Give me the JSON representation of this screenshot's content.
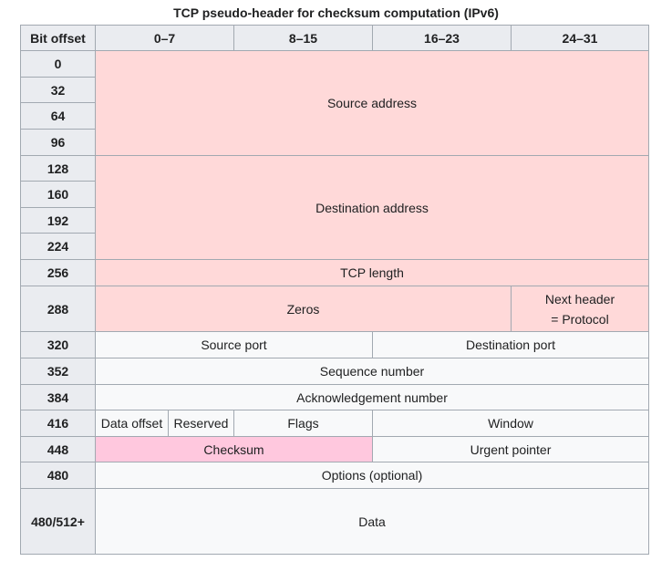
{
  "caption": "TCP pseudo-header for checksum computation (IPv6)",
  "columns": {
    "offset": "Bit offset",
    "c0": "0–7",
    "c1": "8–15",
    "c2": "16–23",
    "c3": "24–31"
  },
  "offsets": [
    "0",
    "32",
    "64",
    "96",
    "128",
    "160",
    "192",
    "224",
    "256",
    "288",
    "320",
    "352",
    "384",
    "416",
    "448",
    "480",
    "480/512+"
  ],
  "fields": {
    "source_address": "Source address",
    "destination_address": "Destination address",
    "tcp_length": "TCP length",
    "zeros": "Zeros",
    "next_header_line1": "Next header",
    "next_header_line2": "= Protocol",
    "source_port": "Source port",
    "destination_port": "Destination port",
    "sequence_number": "Sequence number",
    "ack_number": "Acknowledgement number",
    "data_offset": "Data offset",
    "reserved": "Reserved",
    "flags": "Flags",
    "window": "Window",
    "checksum": "Checksum",
    "urgent_pointer": "Urgent pointer",
    "options": "Options (optional)",
    "data": "Data"
  },
  "colors": {
    "pseudo_header": "#ffd9d9",
    "checksum": "#ffc8de",
    "tcp_header": "#f8f9fa",
    "header_bg": "#eaecf0",
    "border": "#a2a9b1"
  }
}
